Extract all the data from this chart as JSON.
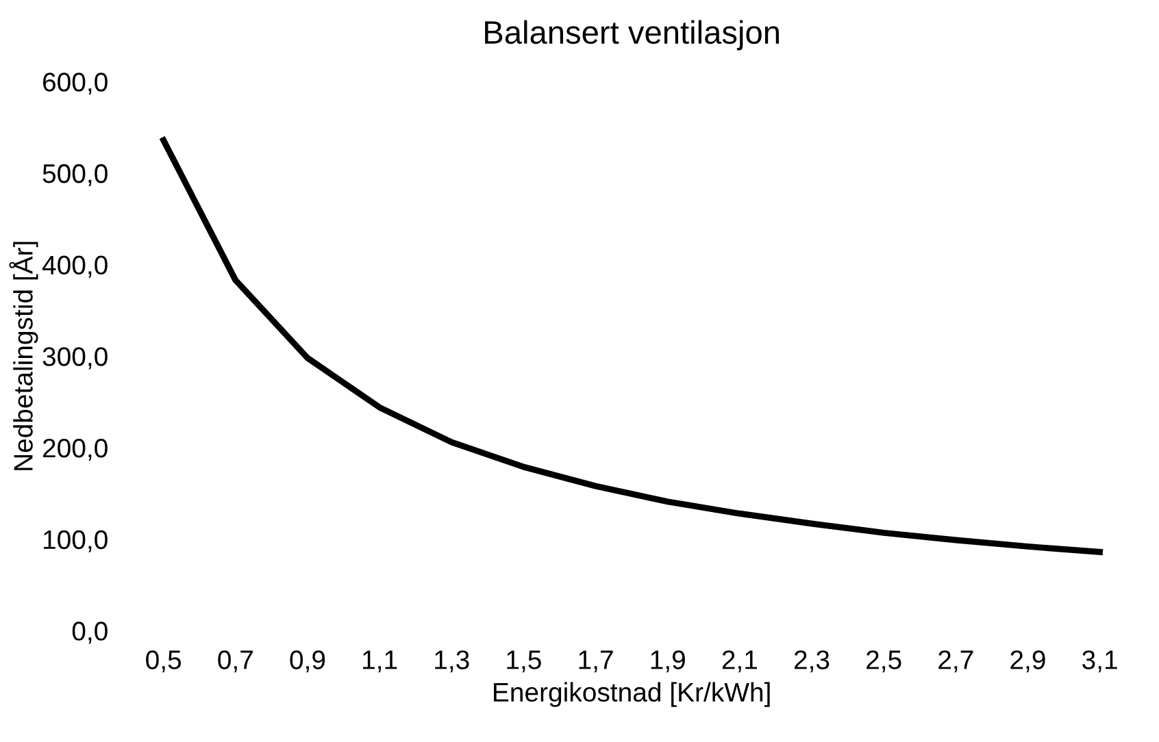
{
  "chart_data": {
    "type": "line",
    "title": "Balansert ventilasjon",
    "xlabel": "Energikostnad [Kr/kWh]",
    "ylabel": "Nedbetalingstid [År]",
    "categories": [
      "0,5",
      "0,7",
      "0,9",
      "1,1",
      "1,3",
      "1,5",
      "1,7",
      "1,9",
      "2,1",
      "2,3",
      "2,5",
      "2,7",
      "2,9",
      "3,1"
    ],
    "series": [
      {
        "color": "#000000",
        "values": [
          536,
          383,
          298,
          244,
          206,
          179,
          158,
          141,
          128,
          117,
          107,
          99,
          92,
          86
        ]
      }
    ],
    "ylim": [
      0,
      600
    ],
    "yticks": [
      {
        "value": 0,
        "label": "0,0"
      },
      {
        "value": 100,
        "label": "100,0"
      },
      {
        "value": 200,
        "label": "200,0"
      },
      {
        "value": 300,
        "label": "300,0"
      },
      {
        "value": 400,
        "label": "400,0"
      },
      {
        "value": 500,
        "label": "500,0"
      },
      {
        "value": 600,
        "label": "600,0"
      }
    ],
    "grid": false,
    "legend": false,
    "marker": "none",
    "line_style": "solid"
  }
}
